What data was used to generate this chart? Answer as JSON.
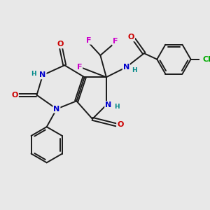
{
  "bg_color": "#e8e8e8",
  "bond_color": "#1a1a1a",
  "atom_colors": {
    "N": "#0000cc",
    "O": "#cc0000",
    "F": "#cc00cc",
    "Cl": "#00aa00",
    "H": "#008888"
  },
  "lw": 1.4,
  "fs": 8.0,
  "fs_small": 6.5
}
